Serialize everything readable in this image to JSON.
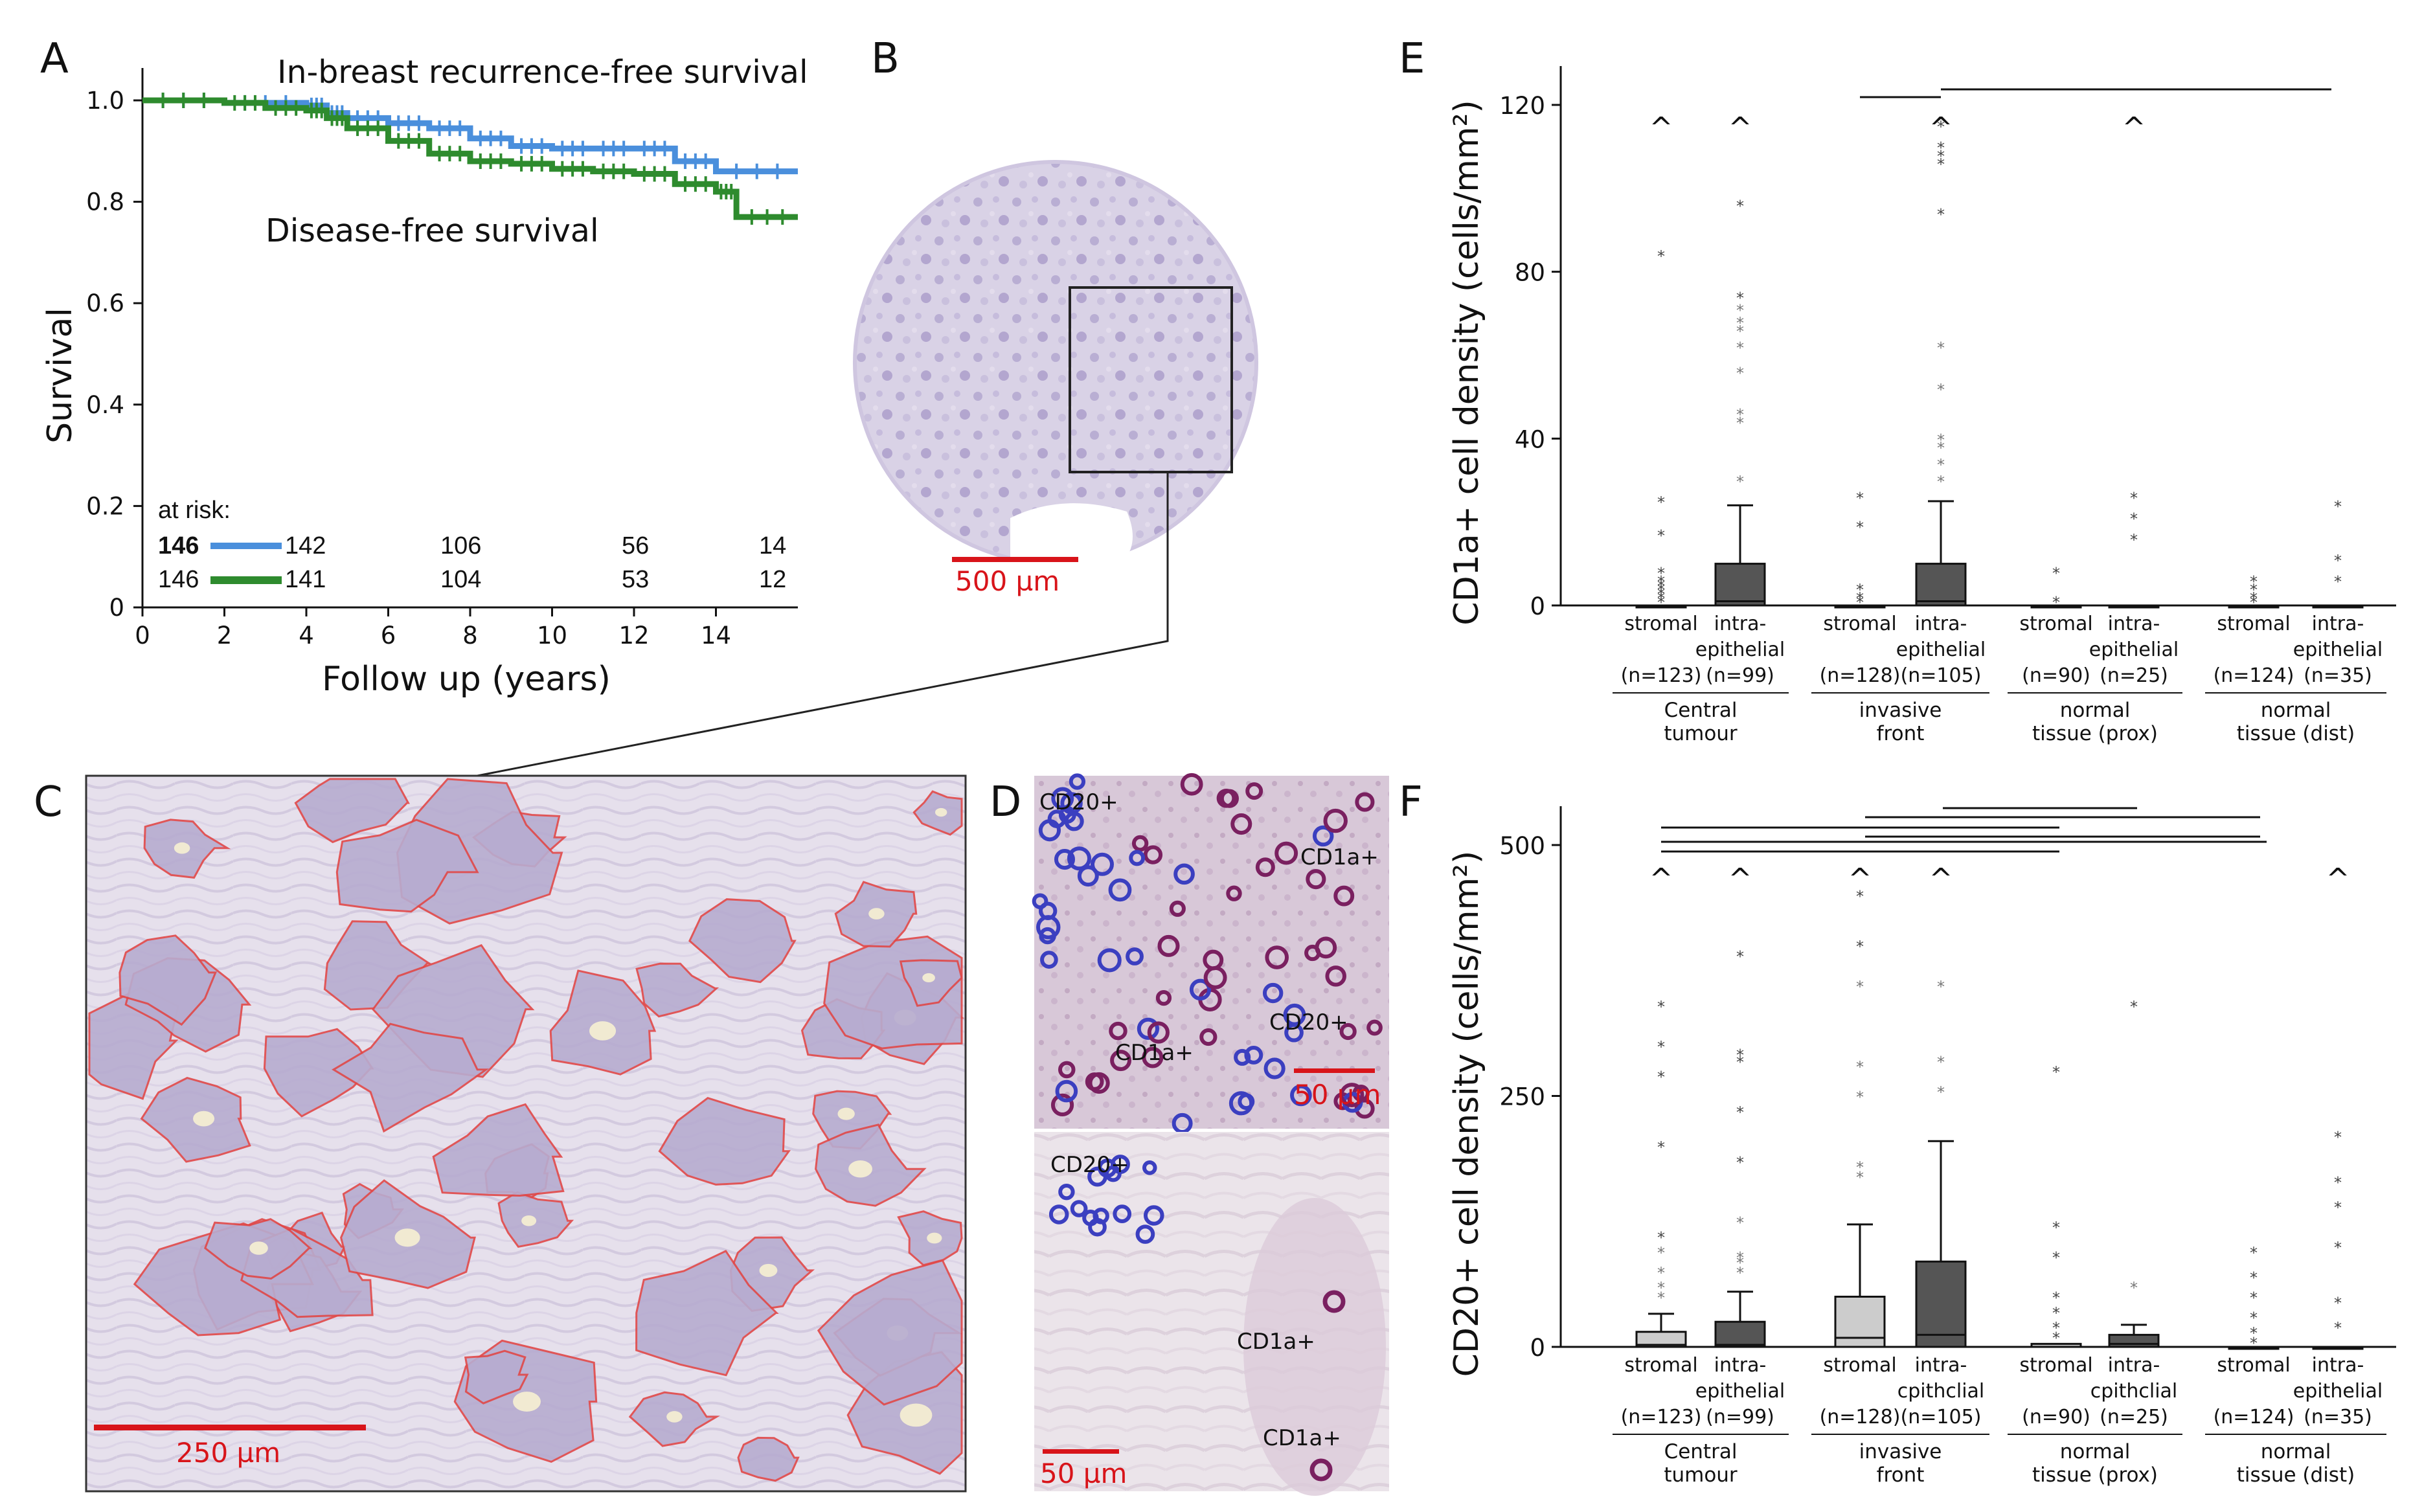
{
  "panels": {
    "A": "A",
    "B": "B",
    "C": "C",
    "D": "D",
    "E": "E",
    "F": "F"
  },
  "colors": {
    "recurrence_blue": "#4a8fdc",
    "dfs_green": "#2e8b2e",
    "scale_red": "#d8141a",
    "box_light": "#cccccc",
    "box_dark": "#555555"
  },
  "panel_a": {
    "ylabel": "Survival",
    "xlabel": "Follow up (years)",
    "yticks": [
      "0",
      "0.2",
      "0.4",
      "0.6",
      "0.8",
      "1.0"
    ],
    "xticks": [
      "0",
      "2",
      "4",
      "6",
      "8",
      "10",
      "12",
      "14"
    ],
    "label_recurrence": "In-breast recurrence-free survival",
    "label_dfs": "Disease-free survival",
    "at_risk_title": "at risk:",
    "risk_blue": [
      "146",
      "142",
      "106",
      "56",
      "14"
    ],
    "risk_green": [
      "146",
      "141",
      "104",
      "53",
      "12"
    ]
  },
  "panel_b": {
    "scale_label": "500 µm"
  },
  "panel_c": {
    "scale_label": "250 µm"
  },
  "panel_d": {
    "top_labels": [
      "CD20+",
      "CD1a+",
      "CD1a+",
      "CD20+"
    ],
    "top_scale": "50 µm",
    "bottom_labels": [
      "CD20+",
      "CD1a+",
      "CD1a+"
    ],
    "bottom_scale": "50 µm"
  },
  "panel_e": {
    "ylabel": "CD1a+ cell density (cells/mm²)",
    "yticks": [
      "0",
      "40",
      "80",
      "120"
    ],
    "categories": [
      {
        "label1": "stromal",
        "label2": "",
        "n": "(n=123)"
      },
      {
        "label1": "intra-",
        "label2": "epithelial",
        "n": "(n=99)"
      },
      {
        "label1": "stromal",
        "label2": "",
        "n": "(n=128)"
      },
      {
        "label1": "intra-",
        "label2": "epithelial",
        "n": "(n=105)"
      },
      {
        "label1": "stromal",
        "label2": "",
        "n": "(n=90)"
      },
      {
        "label1": "intra-",
        "label2": "epithelial",
        "n": "(n=25)"
      },
      {
        "label1": "stromal",
        "label2": "",
        "n": "(n=124)"
      },
      {
        "label1": "intra-",
        "label2": "epithelial",
        "n": "(n=35)"
      }
    ],
    "groups": [
      {
        "line1": "Central",
        "line2": "tumour"
      },
      {
        "line1": "invasive",
        "line2": "front"
      },
      {
        "line1": "normal",
        "line2": "tissue (prox)"
      },
      {
        "line1": "normal",
        "line2": "tissue (dist)"
      }
    ],
    "caret": "^"
  },
  "panel_f": {
    "ylabel": "CD20+ cell density (cells/mm²)",
    "yticks": [
      "0",
      "250",
      "500"
    ],
    "categories": [
      {
        "label1": "stromal",
        "label2": "",
        "n": "(n=123)"
      },
      {
        "label1": "intra-",
        "label2": "epithelial",
        "n": "(n=99)"
      },
      {
        "label1": "stromal",
        "label2": "",
        "n": "(n=128)"
      },
      {
        "label1": "intra-",
        "label2": "cpithclial",
        "n": "(n=105)"
      },
      {
        "label1": "stromal",
        "label2": "",
        "n": "(n=90)"
      },
      {
        "label1": "intra-",
        "label2": "cpithclial",
        "n": "(n=25)"
      },
      {
        "label1": "stromal",
        "label2": "",
        "n": "(n=124)"
      },
      {
        "label1": "intra-",
        "label2": "epithelial",
        "n": "(n=35)"
      }
    ],
    "groups": [
      {
        "line1": "Central",
        "line2": "tumour"
      },
      {
        "line1": "invasive",
        "line2": "front"
      },
      {
        "line1": "normal",
        "line2": "tissue (prox)"
      },
      {
        "line1": "normal",
        "line2": "tissue (dist)"
      }
    ],
    "caret": "^"
  },
  "chart_data": [
    {
      "type": "line",
      "title": "",
      "xlabel": "Follow up (years)",
      "ylabel": "Survival",
      "xlim": [
        0,
        16
      ],
      "ylim": [
        0,
        1.0
      ],
      "series": [
        {
          "name": "In-breast recurrence-free survival",
          "x": [
            0,
            2,
            4,
            4.5,
            5,
            6,
            7,
            8,
            9,
            10,
            11,
            12,
            13,
            14,
            16
          ],
          "y": [
            1.0,
            0.995,
            0.99,
            0.975,
            0.965,
            0.955,
            0.945,
            0.925,
            0.91,
            0.905,
            0.905,
            0.905,
            0.88,
            0.86,
            0.86
          ]
        },
        {
          "name": "Disease-free survival",
          "x": [
            0,
            2,
            3,
            4,
            4.5,
            5,
            6,
            7,
            8,
            9,
            10,
            11,
            12,
            13,
            14,
            14.5,
            16
          ],
          "y": [
            1.0,
            0.995,
            0.985,
            0.98,
            0.965,
            0.945,
            0.92,
            0.895,
            0.88,
            0.875,
            0.865,
            0.86,
            0.855,
            0.835,
            0.82,
            0.77,
            0.77
          ]
        }
      ]
    },
    {
      "type": "box",
      "title": "",
      "ylabel": "CD1a+ cell density (cells/mm²)",
      "ylim": [
        0,
        120
      ],
      "categories": [
        "stromal",
        "intra-epithelial",
        "stromal",
        "intra-epithelial",
        "stromal",
        "intra-epithelial",
        "stromal",
        "intra-epithelial"
      ],
      "groups": [
        "Central tumour",
        "invasive front",
        "normal tissue (prox)",
        "normal tissue (dist)"
      ],
      "boxes": [
        {
          "q1": 0,
          "median": 0,
          "q3": 0,
          "whisker_hi": 0,
          "outliers": [
            1,
            2,
            3,
            4,
            5,
            6,
            8,
            17,
            25,
            84
          ],
          "fill": "#cccccc"
        },
        {
          "q1": 0,
          "median": 1,
          "q3": 10,
          "whisker_hi": 24,
          "outliers": [
            30,
            44,
            46,
            56,
            62,
            66,
            68,
            71,
            74,
            96
          ],
          "fill": "#555555"
        },
        {
          "q1": 0,
          "median": 0,
          "q3": 0,
          "whisker_hi": 0,
          "outliers": [
            1,
            2,
            4,
            19,
            26
          ],
          "fill": "#cccccc"
        },
        {
          "q1": 0,
          "median": 1,
          "q3": 10,
          "whisker_hi": 25,
          "outliers": [
            30,
            34,
            38,
            40,
            52,
            62,
            94,
            106,
            108,
            110,
            115
          ],
          "fill": "#555555"
        },
        {
          "q1": 0,
          "median": 0,
          "q3": 0,
          "whisker_hi": 0,
          "outliers": [
            1,
            8
          ],
          "fill": "#cccccc"
        },
        {
          "q1": 0,
          "median": 0,
          "q3": 0,
          "whisker_hi": 0,
          "outliers": [
            16,
            21,
            26
          ],
          "fill": "#cccccc"
        },
        {
          "q1": 0,
          "median": 0,
          "q3": 0,
          "whisker_hi": 0,
          "outliers": [
            1,
            2,
            4,
            6
          ],
          "fill": "#cccccc"
        },
        {
          "q1": 0,
          "median": 0,
          "q3": 0,
          "whisker_hi": 0,
          "outliers": [
            6,
            11,
            24
          ],
          "fill": "#cccccc"
        }
      ]
    },
    {
      "type": "box",
      "title": "",
      "ylabel": "CD20+ cell density (cells/mm²)",
      "ylim": [
        0,
        500
      ],
      "categories": [
        "stromal",
        "intra-epithelial",
        "stromal",
        "intra-epithelial",
        "stromal",
        "intra-epithelial",
        "stromal",
        "intra-epithelial"
      ],
      "groups": [
        "Central tumour",
        "invasive front",
        "normal tissue (prox)",
        "normal tissue (dist)"
      ],
      "boxes": [
        {
          "q1": 0,
          "median": 2,
          "q3": 15,
          "whisker_hi": 33,
          "outliers": [
            50,
            60,
            75,
            95,
            110,
            200,
            270,
            300,
            340
          ],
          "fill": "#cccccc"
        },
        {
          "q1": 0,
          "median": 2,
          "q3": 25,
          "whisker_hi": 55,
          "outliers": [
            75,
            85,
            90,
            125,
            185,
            235,
            285,
            292,
            390
          ],
          "fill": "#555555"
        },
        {
          "q1": 0,
          "median": 9,
          "q3": 50,
          "whisker_hi": 122,
          "outliers": [
            170,
            180,
            250,
            280,
            360,
            400,
            450
          ],
          "fill": "#cccccc"
        },
        {
          "q1": 0,
          "median": 12,
          "q3": 85,
          "whisker_hi": 205,
          "outliers": [
            255,
            285,
            360
          ],
          "fill": "#555555"
        },
        {
          "q1": 0,
          "median": 0,
          "q3": 3,
          "whisker_hi": 3,
          "outliers": [
            10,
            20,
            35,
            50,
            90,
            120,
            275
          ],
          "fill": "#cccccc"
        },
        {
          "q1": 0,
          "median": 3,
          "q3": 12,
          "whisker_hi": 22,
          "outliers": [
            60,
            340
          ],
          "fill": "#555555"
        },
        {
          "q1": 0,
          "median": 0,
          "q3": 0,
          "whisker_hi": 0,
          "outliers": [
            5,
            15,
            30,
            50,
            70,
            95
          ],
          "fill": "#cccccc"
        },
        {
          "q1": 0,
          "median": 0,
          "q3": 0,
          "whisker_hi": 0,
          "outliers": [
            20,
            45,
            100,
            140,
            165,
            210
          ],
          "fill": "#cccccc"
        }
      ]
    }
  ]
}
